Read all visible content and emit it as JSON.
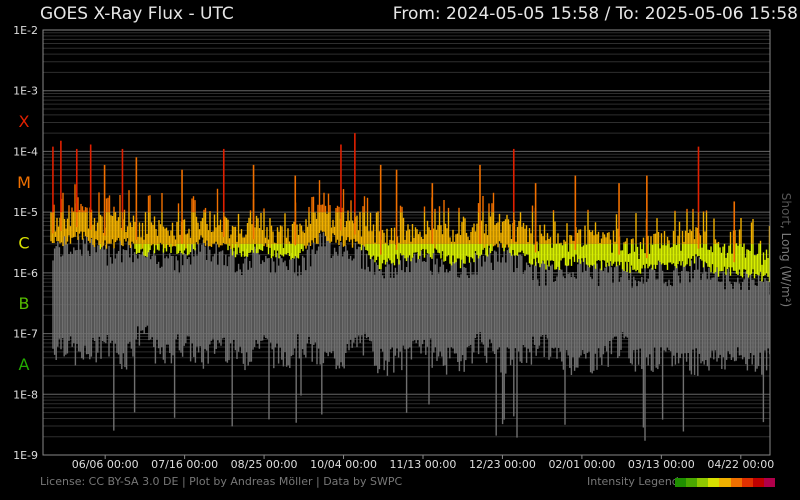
{
  "header": {
    "title": "GOES X-Ray Flux - UTC",
    "range_text": "From: 2024-05-05 15:58  /  To: 2025-05-06 15:58"
  },
  "side_label": {
    "short": "Short",
    "separator": ", ",
    "long": "Long (W/m²)"
  },
  "footer": {
    "credits": "License: CC BY-SA 3.0 DE | Plot by Andreas Möller | Data by SWPC",
    "legend_label": "Intensity Legend",
    "legend_colors": [
      "#1f8f00",
      "#4aa800",
      "#8fc800",
      "#d8e000",
      "#f0b000",
      "#f07000",
      "#e03000",
      "#c00000",
      "#b0004a"
    ]
  },
  "chart_data": {
    "type": "line",
    "yscale": "log",
    "ylim": [
      1e-09,
      0.01
    ],
    "y_ticks": [
      "1E-9",
      "1E-8",
      "1E-7",
      "1E-6",
      "1E-5",
      "1E-4",
      "1E-3",
      "1E-2"
    ],
    "flare_classes": [
      {
        "label": "A",
        "lower": 1e-08,
        "color": "#22aa00"
      },
      {
        "label": "B",
        "lower": 1e-07,
        "color": "#55bb00"
      },
      {
        "label": "C",
        "lower": 1e-06,
        "color": "#d8e000"
      },
      {
        "label": "M",
        "lower": 1e-05,
        "color": "#f07000"
      },
      {
        "label": "X",
        "lower": 0.0001,
        "color": "#e02000"
      }
    ],
    "x_ticks": [
      "06/06 00:00",
      "07/16 00:00",
      "08/25 00:00",
      "10/04 00:00",
      "11/13 00:00",
      "12/23 00:00",
      "02/01 00:00",
      "03/13 00:00",
      "04/22 00:00"
    ],
    "xlim_days": [
      0,
      366
    ],
    "x_tick_days": [
      31.3,
      71.3,
      111.3,
      151.3,
      191.3,
      231.3,
      271.3,
      311.3,
      351.3
    ],
    "long_series": {
      "name": "Long",
      "day": [
        0,
        10,
        20,
        30,
        40,
        50,
        60,
        70,
        80,
        90,
        100,
        110,
        120,
        130,
        140,
        150,
        160,
        170,
        180,
        190,
        200,
        210,
        220,
        230,
        240,
        250,
        260,
        270,
        280,
        290,
        300,
        310,
        320,
        330,
        340,
        350,
        366
      ],
      "flux": [
        4e-06,
        5e-06,
        6e-06,
        4e-06,
        5e-06,
        3e-06,
        4e-06,
        3e-06,
        5e-06,
        4e-06,
        3e-06,
        4e-06,
        2.5e-06,
        3e-06,
        6e-06,
        5e-06,
        4e-06,
        2e-06,
        2.5e-06,
        3e-06,
        3e-06,
        2e-06,
        3e-06,
        4e-06,
        3e-06,
        2e-06,
        2e-06,
        2.5e-06,
        2e-06,
        2e-06,
        1.6e-06,
        2e-06,
        2e-06,
        2.5e-06,
        1.5e-06,
        1.5e-06,
        1.2e-06
      ]
    },
    "short_series": {
      "name": "Short",
      "day": [
        0,
        10,
        20,
        30,
        40,
        50,
        60,
        70,
        80,
        90,
        100,
        110,
        120,
        130,
        140,
        150,
        160,
        170,
        180,
        190,
        200,
        210,
        220,
        230,
        240,
        250,
        260,
        270,
        280,
        290,
        300,
        310,
        320,
        330,
        340,
        350,
        366
      ],
      "flux": [
        1e-07,
        2e-07,
        1e-07,
        2e-07,
        1e-07,
        3e-07,
        1e-07,
        2e-07,
        1e-07,
        2e-07,
        1e-07,
        2e-07,
        1e-07,
        2e-07,
        1e-07,
        1e-07,
        2e-07,
        1e-07,
        1e-07,
        2e-07,
        1e-07,
        1e-07,
        2e-07,
        1e-07,
        1e-07,
        2e-07,
        1e-07,
        1e-07,
        1e-07,
        2e-07,
        1e-07,
        1e-07,
        1e-07,
        1e-07,
        1e-07,
        1e-07,
        1e-07
      ]
    },
    "peaks": [
      {
        "day": 5,
        "flux": 0.00012
      },
      {
        "day": 9,
        "flux": 0.00015
      },
      {
        "day": 17,
        "flux": 0.00011
      },
      {
        "day": 24,
        "flux": 0.00013
      },
      {
        "day": 31,
        "flux": 6e-05
      },
      {
        "day": 40,
        "flux": 0.00011
      },
      {
        "day": 47,
        "flux": 8e-05
      },
      {
        "day": 70,
        "flux": 5e-05
      },
      {
        "day": 91,
        "flux": 0.00011
      },
      {
        "day": 106,
        "flux": 6e-05
      },
      {
        "day": 127,
        "flux": 4e-05
      },
      {
        "day": 150,
        "flux": 0.00013
      },
      {
        "day": 157,
        "flux": 0.0002
      },
      {
        "day": 170,
        "flux": 6e-05
      },
      {
        "day": 178,
        "flux": 5e-05
      },
      {
        "day": 196,
        "flux": 3e-05
      },
      {
        "day": 220,
        "flux": 6e-05
      },
      {
        "day": 237,
        "flux": 0.00011
      },
      {
        "day": 248,
        "flux": 3e-05
      },
      {
        "day": 268,
        "flux": 4e-05
      },
      {
        "day": 290,
        "flux": 3e-05
      },
      {
        "day": 304,
        "flux": 4e-05
      },
      {
        "day": 330,
        "flux": 0.00012
      },
      {
        "day": 348,
        "flux": 1.5e-05
      }
    ]
  }
}
